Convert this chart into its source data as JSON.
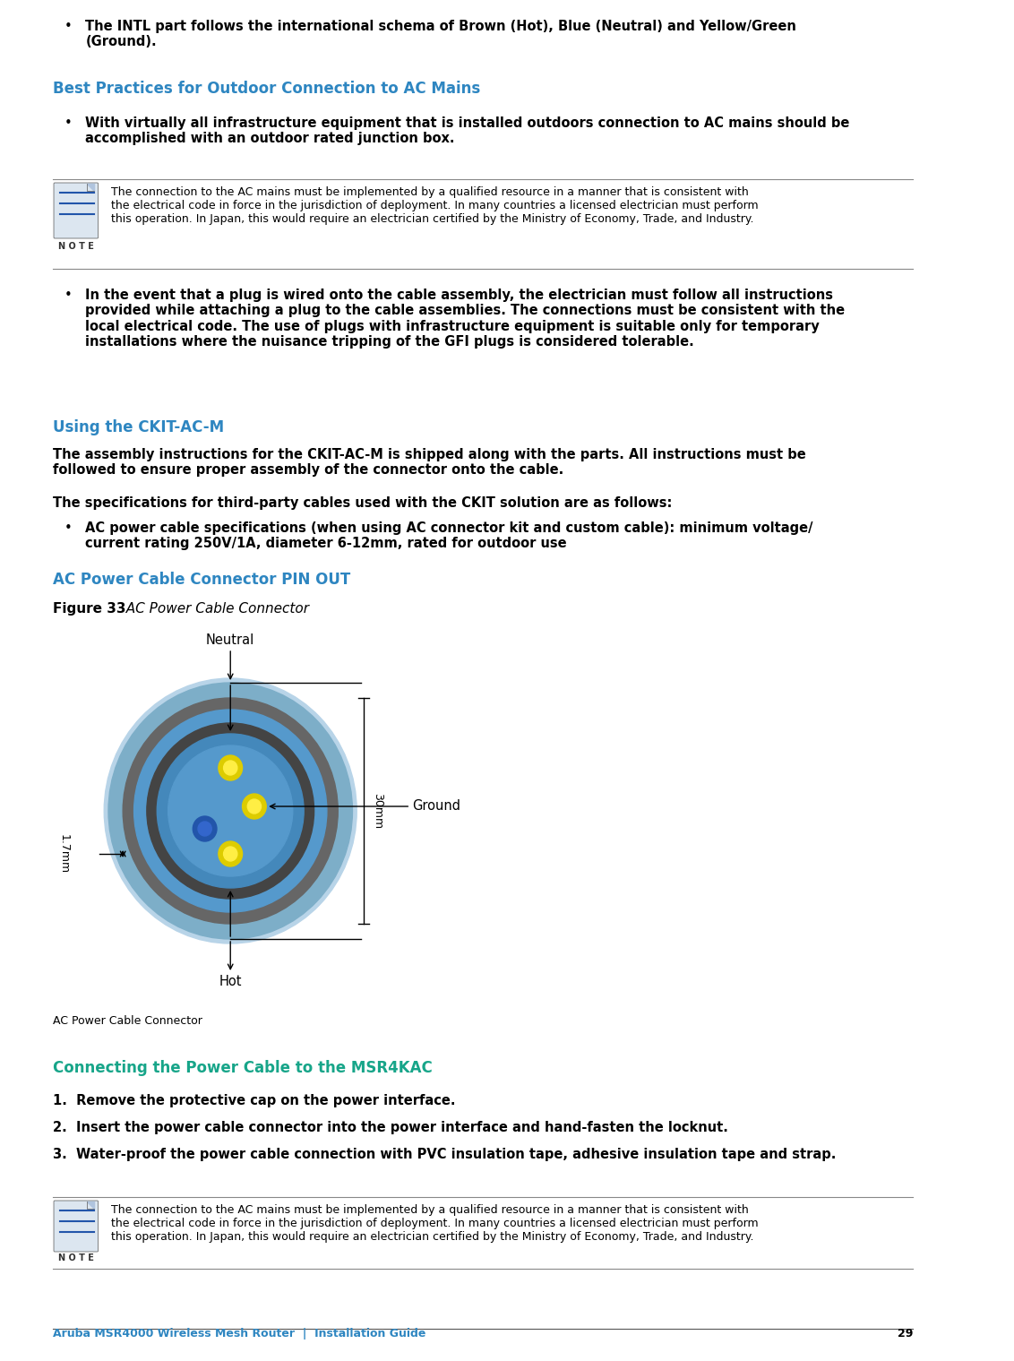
{
  "bg_color": "#ffffff",
  "text_color": "#000000",
  "heading_color": "#2E86C1",
  "subheading_color": "#17A589",
  "footer_color": "#2E86C1",
  "page_number": "29",
  "footer_text": "Aruba MSR4000 Wireless Mesh Router  |  Installation Guide",
  "bullet1_text": "The INTL part follows the international schema of Brown (Hot), Blue (Neutral) and Yellow/Green\n(Ground).",
  "heading1": "Best Practices for Outdoor Connection to AC Mains",
  "bullet2_text": "With virtually all infrastructure equipment that is installed outdoors connection to AC mains should be\naccomplished with an outdoor rated junction box.",
  "note_text": "The connection to the AC mains must be implemented by a qualified resource in a manner that is consistent with\nthe electrical code in force in the jurisdiction of deployment. In many countries a licensed electrician must perform\nthis operation. In Japan, this would require an electrician certified by the Ministry of Economy, Trade, and Industry.",
  "bullet3_text": "In the event that a plug is wired onto the cable assembly, the electrician must follow all instructions\nprovided while attaching a plug to the cable assemblies. The connections must be consistent with the\nlocal electrical code. The use of plugs with infrastructure equipment is suitable only for temporary\ninstallations where the nuisance tripping of the GFI plugs is considered tolerable.",
  "heading2": "Using the CKIT-AC-M",
  "para1": "The assembly instructions for the CKIT-AC-M is shipped along with the parts. All instructions must be\nfollowed to ensure proper assembly of the connector onto the cable.",
  "para2": "The specifications for third-party cables used with the CKIT solution are as follows:",
  "bullet4_text": "AC power cable specifications (when using AC connector kit and custom cable): minimum voltage/\ncurrent rating 250V/1A, diameter 6-12mm, rated for outdoor use",
  "heading3": "AC Power Cable Connector PIN OUT",
  "fig_label_bold": "Figure 33",
  "fig_label_italic": "  AC Power Cable Connector",
  "label_neutral": "Neutral",
  "label_ground": "Ground",
  "label_hot": "Hot",
  "label_17mm": "1.7mm",
  "label_30mm": "30mm",
  "fig_caption": "AC Power Cable Connector",
  "heading4": "Connecting the Power Cable to the MSR4KAC",
  "step1": "1.  Remove the protective cap on the power interface.",
  "step2": "2.  Insert the power cable connector into the power interface and hand-fasten the locknut.",
  "step3": "3.  Water-proof the power cable connection with PVC insulation tape, adhesive insulation tape and strap.",
  "note2_text": "The connection to the AC mains must be implemented by a qualified resource in a manner that is consistent with the electrical code in force in the jurisdiction of deployment. In many countries a licensed electrician must perform this operation. In Japan, this would require an electrician certified by the Ministry of Economy, Trade, and Industry."
}
